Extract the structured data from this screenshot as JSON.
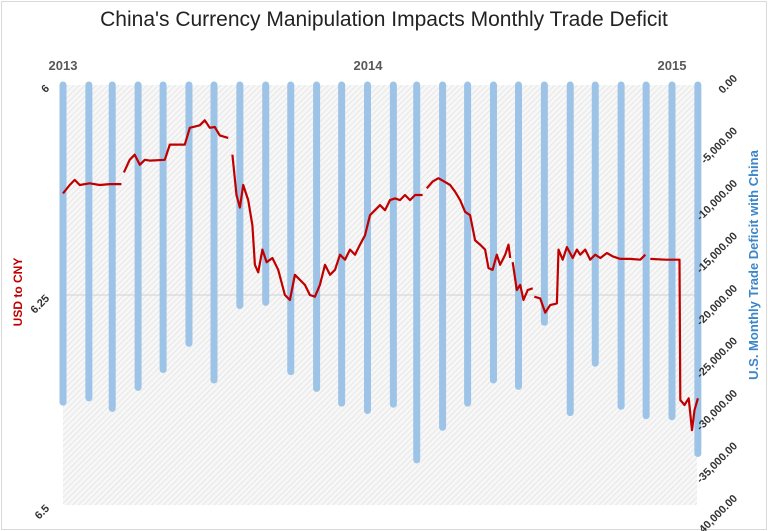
{
  "chart_data": {
    "type": "bar+line",
    "title": "China's Currency Manipulation Impacts Monthly Trade Deficit",
    "x_tick_labels": [
      "2013",
      "2014",
      "2015"
    ],
    "x_range": [
      "2013-01-01",
      "2015-02-01"
    ],
    "left_axis": {
      "label": "USD to CNY",
      "range": [
        6,
        6.5
      ],
      "inverted": true,
      "ticks": [
        "6",
        "6.25",
        "6.5"
      ]
    },
    "right_axis": {
      "label": "U.S. Monthly Trade Deficit with China",
      "range": [
        0,
        -40000
      ],
      "ticks": [
        "0.00",
        "-5,000.00",
        "-10,000.00",
        "-15,000.00",
        "-20,000.00",
        "-25,000.00",
        "-30,000.00",
        "-35,000.00",
        "-40,000.00"
      ]
    },
    "grid": "horizontal at 6.25",
    "colors": {
      "bars": "#9DC3E6",
      "line": "#C00000",
      "background": "#F2F2F2"
    },
    "bar_series": {
      "axis": "right",
      "dates": [
        "2013-01",
        "2013-02",
        "2013-03",
        "2013-04",
        "2013-05",
        "2013-06",
        "2013-07",
        "2013-08",
        "2013-09",
        "2013-10",
        "2013-11",
        "2013-12",
        "2014-01",
        "2014-02",
        "2014-03",
        "2014-04",
        "2014-05",
        "2014-06",
        "2014-07",
        "2014-08",
        "2014-09",
        "2014-10",
        "2014-11",
        "2014-12",
        "2015-01",
        "2015-02"
      ],
      "values": [
        -30200,
        -29800,
        -30800,
        -28800,
        -27100,
        -24600,
        -28100,
        -21000,
        -20700,
        -27300,
        -28900,
        -30300,
        -31000,
        -30400,
        -35700,
        -32600,
        -30300,
        -28100,
        -28700,
        -22600,
        -31200,
        -26500,
        -30600,
        -31500,
        -31600,
        -35100
      ]
    },
    "line_series": {
      "axis": "left",
      "segments": [
        [
          [
            "2013-01-01",
            6.129
          ],
          [
            "2013-01-09",
            6.119
          ],
          [
            "2013-01-15",
            6.113
          ],
          [
            "2013-01-21",
            6.119
          ],
          [
            "2013-02-02",
            6.117
          ],
          [
            "2013-02-14",
            6.119
          ],
          [
            "2013-02-26",
            6.118
          ],
          [
            "2013-03-12",
            6.118
          ]
        ],
        [
          [
            "2013-03-15",
            6.104
          ],
          [
            "2013-03-22",
            6.089
          ],
          [
            "2013-03-28",
            6.083
          ],
          [
            "2013-04-03",
            6.095
          ],
          [
            "2013-04-09",
            6.089
          ],
          [
            "2013-04-15",
            6.09
          ],
          [
            "2013-05-03",
            6.089
          ],
          [
            "2013-05-09",
            6.071
          ],
          [
            "2013-05-27",
            6.071
          ],
          [
            "2013-06-02",
            6.051
          ],
          [
            "2013-06-14",
            6.048
          ],
          [
            "2013-06-20",
            6.042
          ],
          [
            "2013-06-26",
            6.051
          ],
          [
            "2013-07-02",
            6.05
          ],
          [
            "2013-07-08",
            6.06
          ],
          [
            "2013-07-18",
            6.063
          ]
        ],
        [
          [
            "2013-07-23",
            6.083
          ],
          [
            "2013-07-28",
            6.131
          ],
          [
            "2013-08-01",
            6.146
          ],
          [
            "2013-08-05",
            6.119
          ],
          [
            "2013-08-11",
            6.137
          ],
          [
            "2013-08-16",
            6.167
          ],
          [
            "2013-08-19",
            6.214
          ],
          [
            "2013-08-23",
            6.223
          ],
          [
            "2013-08-28",
            6.196
          ],
          [
            "2013-09-02",
            6.211
          ],
          [
            "2013-09-09",
            6.206
          ],
          [
            "2013-09-16",
            6.22
          ],
          [
            "2013-09-24",
            6.25
          ],
          [
            "2013-09-30",
            6.256
          ],
          [
            "2013-10-06",
            6.226
          ],
          [
            "2013-10-18",
            6.238
          ],
          [
            "2013-10-24",
            6.25
          ],
          [
            "2013-10-30",
            6.252
          ],
          [
            "2013-11-05",
            6.238
          ],
          [
            "2013-11-11",
            6.214
          ],
          [
            "2013-11-17",
            6.226
          ],
          [
            "2013-11-23",
            6.22
          ],
          [
            "2013-11-29",
            6.202
          ],
          [
            "2013-12-05",
            6.208
          ],
          [
            "2013-12-11",
            6.196
          ],
          [
            "2013-12-17",
            6.202
          ],
          [
            "2013-12-23",
            6.19
          ],
          [
            "2013-12-29",
            6.179
          ],
          [
            "2014-01-04",
            6.155
          ],
          [
            "2014-01-10",
            6.149
          ],
          [
            "2014-01-16",
            6.143
          ],
          [
            "2014-01-22",
            6.149
          ],
          [
            "2014-01-28",
            6.137
          ],
          [
            "2014-02-03",
            6.135
          ],
          [
            "2014-02-09",
            6.137
          ],
          [
            "2014-02-15",
            6.131
          ],
          [
            "2014-02-21",
            6.137
          ],
          [
            "2014-02-27",
            6.131
          ],
          [
            "2014-03-08",
            6.131
          ]
        ],
        [
          [
            "2014-03-13",
            6.123
          ],
          [
            "2014-03-20",
            6.115
          ],
          [
            "2014-03-27",
            6.111
          ],
          [
            "2014-04-03",
            6.115
          ],
          [
            "2014-04-10",
            6.119
          ],
          [
            "2014-04-16",
            6.127
          ],
          [
            "2014-04-22",
            6.137
          ],
          [
            "2014-04-28",
            6.151
          ],
          [
            "2014-05-04",
            6.155
          ],
          [
            "2014-05-10",
            6.185
          ],
          [
            "2014-05-16",
            6.19
          ],
          [
            "2014-05-22",
            6.196
          ],
          [
            "2014-05-26",
            6.218
          ],
          [
            "2014-05-31",
            6.22
          ],
          [
            "2014-06-05",
            6.202
          ],
          [
            "2014-06-09",
            6.214
          ],
          [
            "2014-06-15",
            6.202
          ],
          [
            "2014-06-19",
            6.19
          ],
          [
            "2014-06-21",
            6.206
          ]
        ],
        [
          [
            "2014-06-24",
            6.211
          ],
          [
            "2014-06-29",
            6.244
          ],
          [
            "2014-07-03",
            6.238
          ],
          [
            "2014-07-07",
            6.256
          ],
          [
            "2014-07-12",
            6.244
          ],
          [
            "2014-07-18",
            6.242
          ]
        ],
        [
          [
            "2014-07-20",
            6.252
          ],
          [
            "2014-07-27",
            6.254
          ],
          [
            "2014-08-02",
            6.271
          ],
          [
            "2014-08-08",
            6.262
          ],
          [
            "2014-08-16",
            6.26
          ],
          [
            "2014-08-18",
            6.196
          ],
          [
            "2014-08-23",
            6.208
          ],
          [
            "2014-08-28",
            6.193
          ],
          [
            "2014-09-04",
            6.206
          ],
          [
            "2014-09-09",
            6.196
          ],
          [
            "2014-09-13",
            6.202
          ],
          [
            "2014-09-19",
            6.196
          ],
          [
            "2014-09-25",
            6.208
          ],
          [
            "2014-10-01",
            6.202
          ],
          [
            "2014-10-07",
            6.206
          ],
          [
            "2014-10-15",
            6.2
          ],
          [
            "2014-10-22",
            6.204
          ],
          [
            "2014-10-31",
            6.207
          ],
          [
            "2014-11-12",
            6.207
          ],
          [
            "2014-11-24",
            6.208
          ],
          [
            "2014-11-30",
            6.202
          ]
        ],
        [
          [
            "2014-12-06",
            6.207
          ],
          [
            "2014-12-24",
            6.208
          ],
          [
            "2015-01-10",
            6.208
          ],
          [
            "2015-01-11",
            6.375
          ],
          [
            "2015-01-16",
            6.381
          ],
          [
            "2015-01-21",
            6.373
          ],
          [
            "2015-01-25",
            6.411
          ],
          [
            "2015-01-28",
            6.387
          ],
          [
            "2015-02-01",
            6.373
          ]
        ]
      ]
    }
  }
}
